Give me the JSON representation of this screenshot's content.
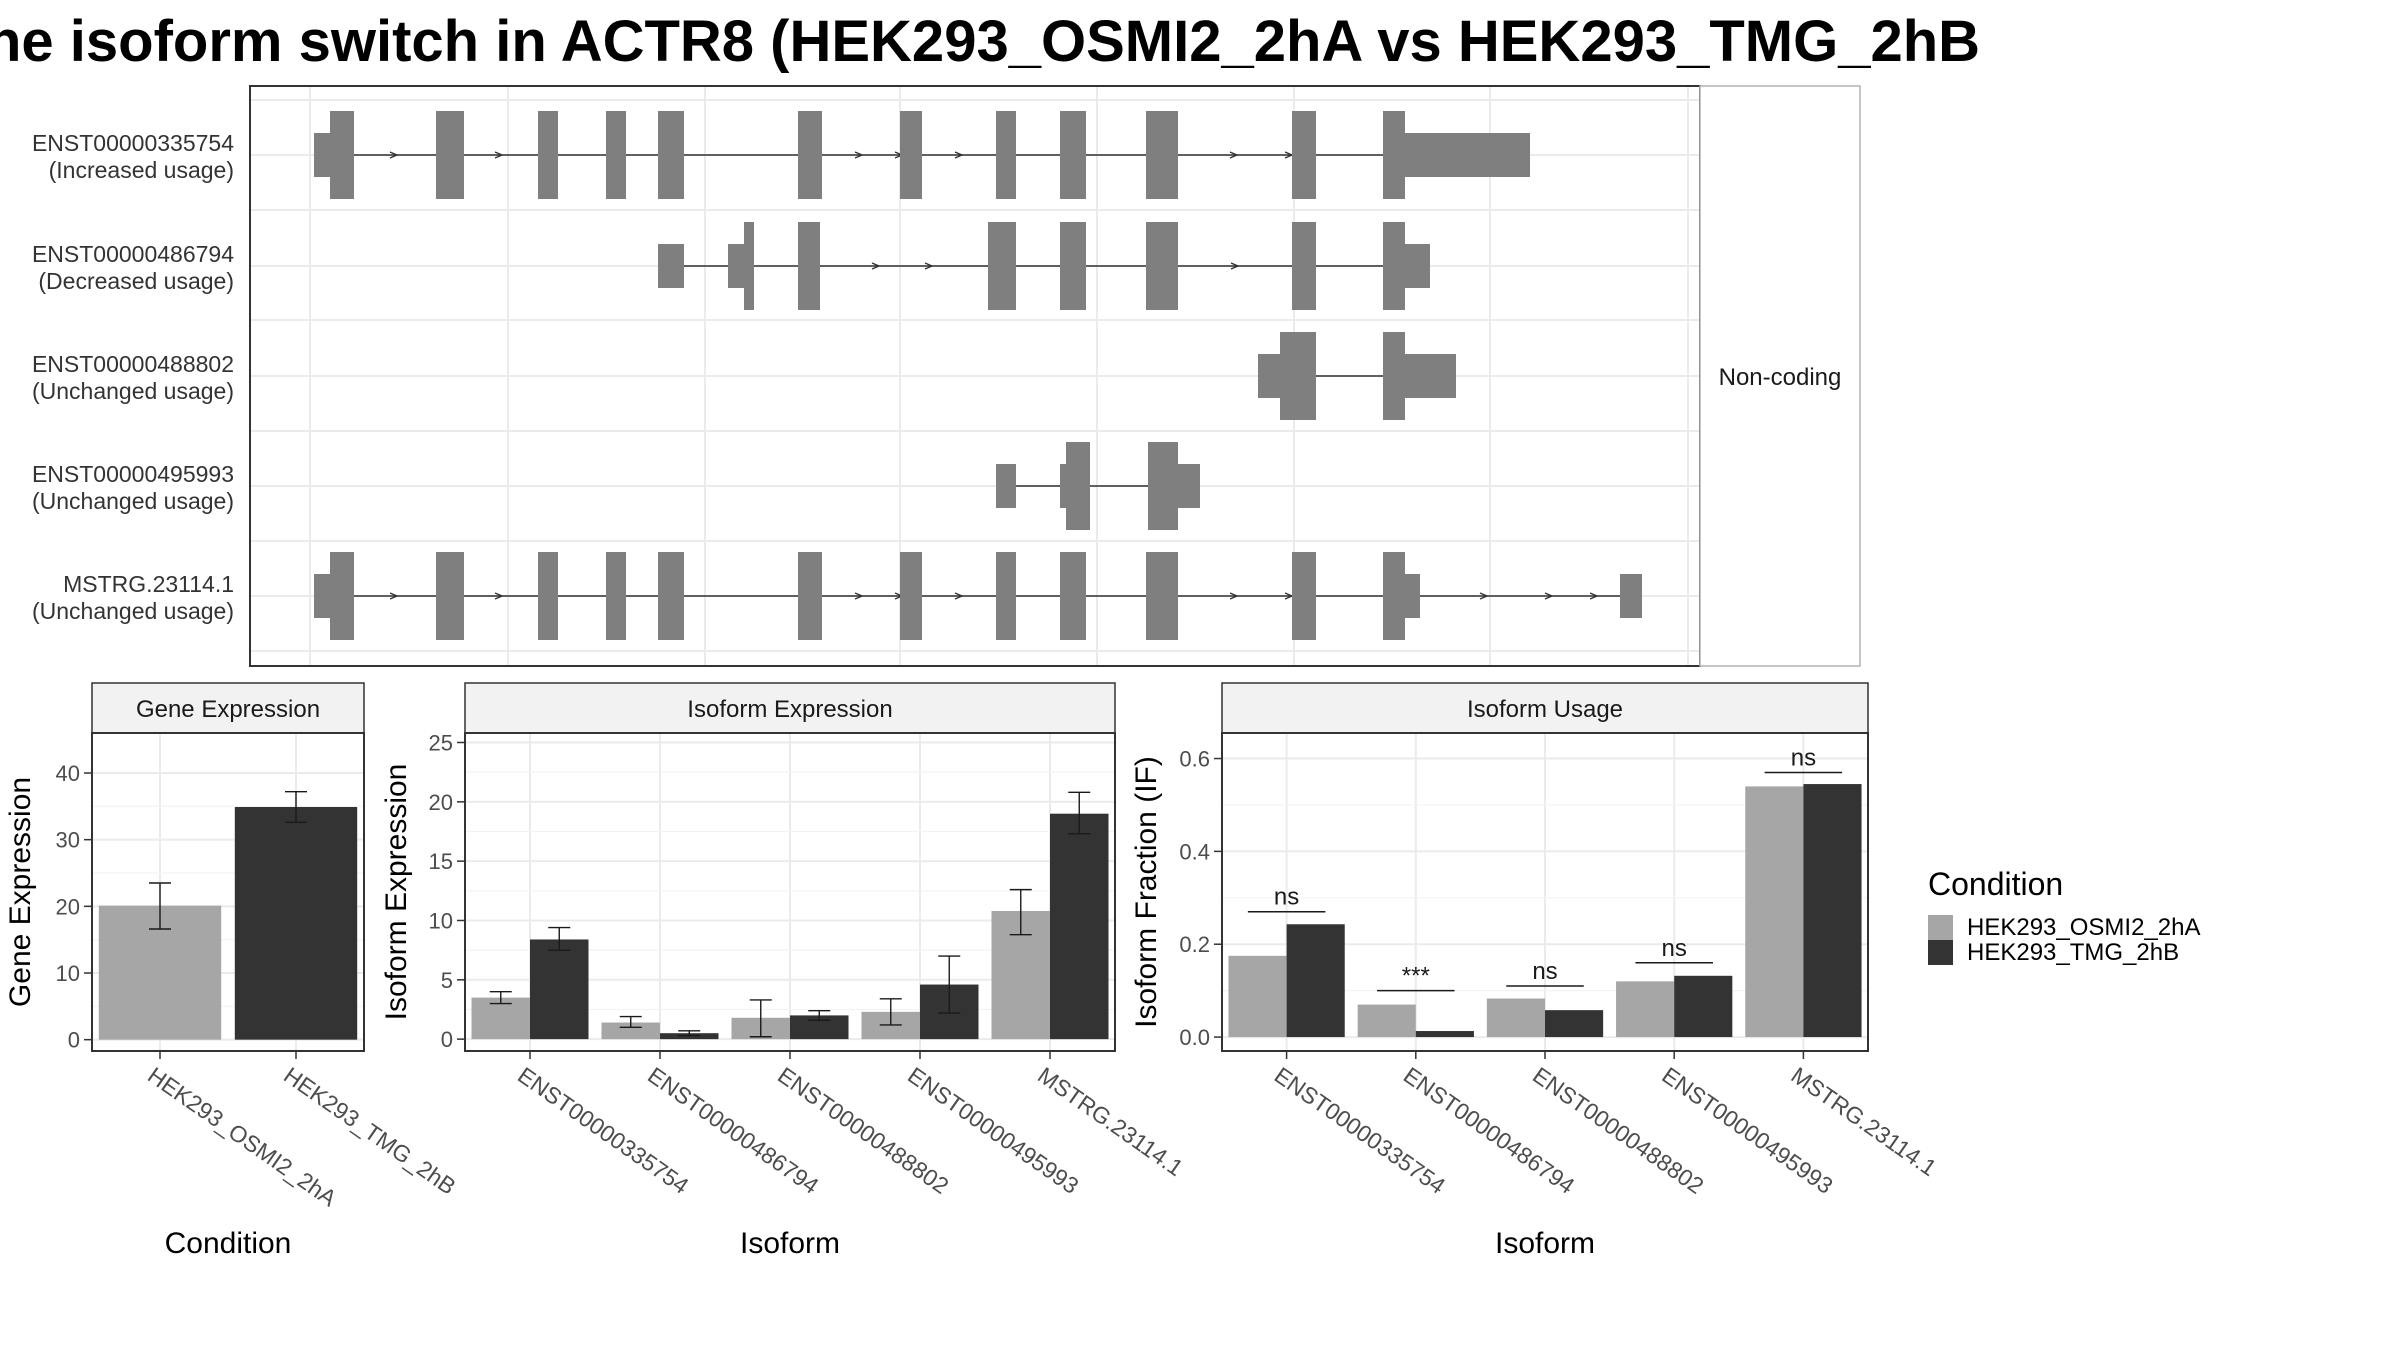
{
  "title": "he isoform switch in ACTR8 (HEK293_OSMI2_2hA vs HEK293_TMG_2hB",
  "colors": {
    "condition_a": "#a6a6a6",
    "condition_b": "#333333",
    "exon": "#7f7f7f",
    "grid": "#ebebeb",
    "strip": "#f2f2f2",
    "border": "#333333"
  },
  "legend": {
    "title": "Condition",
    "items": [
      "HEK293_OSMI2_2hA",
      "HEK293_TMG_2hB"
    ]
  },
  "transcript_panel": {
    "strip_label": "Non-coding",
    "tracks": [
      {
        "id": "ENST00000335754",
        "status": "(Increased usage)"
      },
      {
        "id": "ENST00000486794",
        "status": "(Decreased usage)"
      },
      {
        "id": "ENST00000488802",
        "status": "(Unchanged usage)"
      },
      {
        "id": "ENST00000495993",
        "status": "(Unchanged usage)"
      },
      {
        "id": "MSTRG.23114.1",
        "status": "(Unchanged usage)"
      }
    ]
  },
  "chart_data": [
    {
      "type": "bar",
      "title": "Gene Expression",
      "xlabel": "Condition",
      "ylabel": "Gene Expression",
      "categories": [
        "HEK293_OSMI2_2hA",
        "HEK293_TMG_2hB"
      ],
      "values": [
        20.1,
        34.9
      ],
      "error": [
        [
          16.6,
          23.5
        ],
        [
          32.6,
          37.2
        ]
      ],
      "ylim": [
        -1.7,
        46
      ],
      "yticks": [
        0,
        10,
        20,
        30,
        40
      ],
      "yticklabels": [
        "0",
        "10",
        "20",
        "30",
        "40"
      ],
      "grid": true
    },
    {
      "type": "bar",
      "title": "Isoform Expression",
      "xlabel": "Isoform",
      "ylabel": "Isoform Expression",
      "categories": [
        "ENST00000335754",
        "ENST00000486794",
        "ENST00000488802",
        "ENST00000495993",
        "MSTRG.23114.1"
      ],
      "series": [
        {
          "name": "HEK293_OSMI2_2hA",
          "values": [
            3.5,
            1.4,
            1.8,
            2.3,
            10.8
          ],
          "error": [
            [
              3.0,
              4.0
            ],
            [
              1.0,
              1.9
            ],
            [
              0.2,
              3.3
            ],
            [
              1.2,
              3.4
            ],
            [
              8.8,
              12.6
            ]
          ]
        },
        {
          "name": "HEK293_TMG_2hB",
          "values": [
            8.4,
            0.5,
            2.0,
            4.6,
            19.0
          ],
          "error": [
            [
              7.5,
              9.4
            ],
            [
              0.3,
              0.7
            ],
            [
              1.6,
              2.4
            ],
            [
              2.2,
              7.0
            ],
            [
              17.3,
              20.8
            ]
          ]
        }
      ],
      "ylim": [
        -1.0,
        25.8
      ],
      "yticks": [
        0,
        5,
        10,
        15,
        20,
        25
      ],
      "yticklabels": [
        "0",
        "5",
        "10",
        "15",
        "20",
        "25"
      ],
      "grid": true
    },
    {
      "type": "bar",
      "title": "Isoform Usage",
      "xlabel": "Isoform",
      "ylabel": "Isoform Fraction (IF)",
      "categories": [
        "ENST00000335754",
        "ENST00000486794",
        "ENST00000488802",
        "ENST00000495993",
        "MSTRG.23114.1"
      ],
      "series": [
        {
          "name": "HEK293_OSMI2_2hA",
          "values": [
            0.175,
            0.07,
            0.083,
            0.12,
            0.54
          ]
        },
        {
          "name": "HEK293_TMG_2hB",
          "values": [
            0.243,
            0.013,
            0.058,
            0.132,
            0.545
          ]
        }
      ],
      "significance": [
        "ns",
        "***",
        "ns",
        "ns",
        "ns"
      ],
      "sig_y": [
        0.27,
        0.1,
        0.11,
        0.16,
        0.57
      ],
      "ylim": [
        -0.03,
        0.655
      ],
      "yticks": [
        0.0,
        0.2,
        0.4,
        0.6
      ],
      "yticklabels": [
        "0.0",
        "0.2",
        "0.4",
        "0.6"
      ],
      "grid": true
    }
  ]
}
